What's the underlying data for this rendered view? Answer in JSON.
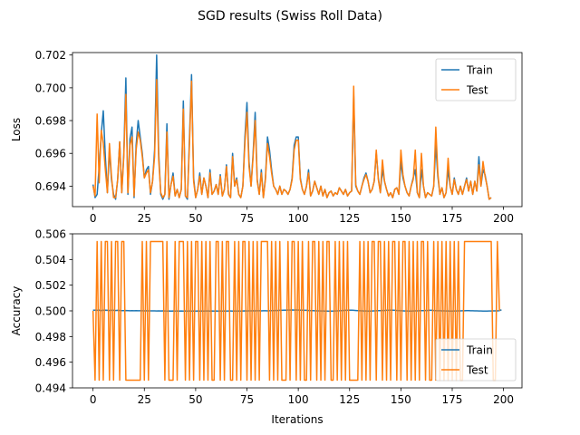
{
  "title": "SGD results (Swiss Roll Data)",
  "colors": {
    "train": "#1f77b4",
    "test": "#ff7f0e"
  },
  "chart_data": [
    {
      "type": "line",
      "ylabel": "Loss",
      "xlabel": "",
      "xlim": [
        -10,
        209
      ],
      "ylim": [
        0.69275,
        0.70215
      ],
      "xticks": [
        0,
        25,
        50,
        75,
        100,
        125,
        150,
        175,
        200
      ],
      "yticks": [
        0.694,
        0.696,
        0.698,
        0.7,
        0.702
      ],
      "ytick_labels": [
        "0.694",
        "0.696",
        "0.698",
        "0.700",
        "0.702"
      ],
      "legend": {
        "position": "top-right",
        "entries": [
          "Train",
          "Test"
        ]
      },
      "series": [
        {
          "name": "Train",
          "x_step": 1,
          "values": [
            0.6941,
            0.6933,
            0.6935,
            0.6952,
            0.6972,
            0.6986,
            0.6958,
            0.6936,
            0.6962,
            0.6944,
            0.6935,
            0.6932,
            0.6944,
            0.6967,
            0.6936,
            0.696,
            0.7006,
            0.6935,
            0.6969,
            0.6976,
            0.6933,
            0.6965,
            0.698,
            0.697,
            0.696,
            0.6945,
            0.695,
            0.6952,
            0.6935,
            0.6943,
            0.6962,
            0.702,
            0.696,
            0.6935,
            0.6932,
            0.6935,
            0.6978,
            0.6932,
            0.6941,
            0.6948,
            0.6934,
            0.6938,
            0.6933,
            0.6938,
            0.6992,
            0.6934,
            0.6932,
            0.697,
            0.7008,
            0.6945,
            0.6933,
            0.6938,
            0.6948,
            0.6935,
            0.6945,
            0.694,
            0.6933,
            0.695,
            0.6935,
            0.6937,
            0.6941,
            0.6935,
            0.6947,
            0.6934,
            0.6938,
            0.6953,
            0.6935,
            0.6933,
            0.696,
            0.694,
            0.6945,
            0.6935,
            0.6933,
            0.694,
            0.697,
            0.6991,
            0.6955,
            0.694,
            0.696,
            0.6985,
            0.6944,
            0.6935,
            0.695,
            0.6933,
            0.6945,
            0.697,
            0.6962,
            0.695,
            0.694,
            0.6938,
            0.6935,
            0.694,
            0.6935,
            0.6938,
            0.6937,
            0.6935,
            0.6938,
            0.6945,
            0.6965,
            0.697,
            0.697,
            0.6945,
            0.6938,
            0.6935,
            0.694,
            0.695,
            0.6934,
            0.6937,
            0.6943,
            0.6939,
            0.6935,
            0.694,
            0.6934,
            0.6938,
            0.6933,
            0.6936,
            0.6937,
            0.6934,
            0.6936,
            0.6935,
            0.6939,
            0.6937,
            0.6935,
            0.6938,
            0.6934,
            0.6936,
            0.6937,
            0.6995,
            0.694,
            0.6937,
            0.6935,
            0.694,
            0.6945,
            0.6948,
            0.6943,
            0.6936,
            0.6938,
            0.6943,
            0.696,
            0.6945,
            0.6936,
            0.695,
            0.6943,
            0.6938,
            0.6934,
            0.6936,
            0.6933,
            0.6938,
            0.6939,
            0.6935,
            0.6955,
            0.6945,
            0.694,
            0.6936,
            0.6934,
            0.694,
            0.6945,
            0.695,
            0.6936,
            0.6933,
            0.695,
            0.694,
            0.6933,
            0.6936,
            0.6935,
            0.6934,
            0.694,
            0.6965,
            0.6946,
            0.6935,
            0.6939,
            0.6933,
            0.6936,
            0.695,
            0.694,
            0.6935,
            0.6945,
            0.6938,
            0.6935,
            0.694,
            0.6935,
            0.694,
            0.6945,
            0.6937,
            0.6943,
            0.6935,
            0.6943,
            0.6937,
            0.6958,
            0.694,
            0.695,
            0.6947,
            0.694,
            0.6932,
            0.6933
          ]
        },
        {
          "name": "Test",
          "x_step": 1,
          "values": [
            0.694,
            0.6934,
            0.6984,
            0.6942,
            0.6974,
            0.6966,
            0.695,
            0.6936,
            0.6966,
            0.6946,
            0.6933,
            0.6933,
            0.6944,
            0.6967,
            0.6936,
            0.6958,
            0.6996,
            0.6936,
            0.6965,
            0.697,
            0.6934,
            0.6962,
            0.6973,
            0.6968,
            0.6958,
            0.6945,
            0.6948,
            0.695,
            0.6936,
            0.6943,
            0.6958,
            0.7005,
            0.6956,
            0.6936,
            0.6933,
            0.6935,
            0.6973,
            0.6933,
            0.6941,
            0.6946,
            0.6934,
            0.6938,
            0.6933,
            0.6938,
            0.6987,
            0.6934,
            0.6933,
            0.6966,
            0.7004,
            0.6943,
            0.6933,
            0.6938,
            0.6946,
            0.6935,
            0.6945,
            0.694,
            0.6933,
            0.6948,
            0.6935,
            0.6937,
            0.6941,
            0.6935,
            0.6946,
            0.6934,
            0.6938,
            0.6952,
            0.6935,
            0.6933,
            0.6958,
            0.694,
            0.6944,
            0.6935,
            0.6933,
            0.694,
            0.6966,
            0.6985,
            0.6952,
            0.694,
            0.6958,
            0.698,
            0.6943,
            0.6935,
            0.6948,
            0.6933,
            0.6944,
            0.6966,
            0.6958,
            0.6948,
            0.694,
            0.6938,
            0.6935,
            0.694,
            0.6935,
            0.6938,
            0.6937,
            0.6935,
            0.6938,
            0.6944,
            0.6962,
            0.6968,
            0.6968,
            0.6944,
            0.6938,
            0.6935,
            0.694,
            0.6948,
            0.6934,
            0.6937,
            0.6943,
            0.6939,
            0.6935,
            0.694,
            0.6934,
            0.6938,
            0.6933,
            0.6936,
            0.6937,
            0.6934,
            0.6936,
            0.6935,
            0.6939,
            0.6937,
            0.6935,
            0.6938,
            0.6934,
            0.6936,
            0.6937,
            0.7001,
            0.6941,
            0.6937,
            0.6935,
            0.694,
            0.6944,
            0.6947,
            0.6943,
            0.6936,
            0.6938,
            0.6943,
            0.6962,
            0.6944,
            0.6936,
            0.6956,
            0.6943,
            0.6938,
            0.6934,
            0.6936,
            0.6933,
            0.6938,
            0.6939,
            0.6935,
            0.6962,
            0.6947,
            0.694,
            0.6936,
            0.6934,
            0.694,
            0.6944,
            0.6962,
            0.6936,
            0.6933,
            0.696,
            0.694,
            0.6933,
            0.6936,
            0.6935,
            0.6934,
            0.694,
            0.6976,
            0.6948,
            0.6935,
            0.6939,
            0.6933,
            0.6936,
            0.6957,
            0.694,
            0.6935,
            0.6944,
            0.6938,
            0.6935,
            0.694,
            0.6935,
            0.694,
            0.6944,
            0.6937,
            0.6943,
            0.6935,
            0.6943,
            0.6937,
            0.6953,
            0.694,
            0.6955,
            0.6946,
            0.694,
            0.6932,
            0.6933
          ]
        }
      ]
    },
    {
      "type": "line",
      "ylabel": "Accuracy",
      "xlabel": "Iterations",
      "xlim": [
        -10,
        209
      ],
      "ylim": [
        0.494,
        0.506
      ],
      "xticks": [
        0,
        25,
        50,
        75,
        100,
        125,
        150,
        175,
        200
      ],
      "yticks": [
        0.494,
        0.496,
        0.498,
        0.5,
        0.502,
        0.504,
        0.506
      ],
      "ytick_labels": [
        "0.494",
        "0.496",
        "0.498",
        "0.500",
        "0.502",
        "0.504",
        "0.506"
      ],
      "legend": {
        "position": "bottom-right",
        "entries": [
          "Train",
          "Test"
        ]
      },
      "series": [
        {
          "name": "Train",
          "x_step": 1,
          "values": [
            0.50005,
            0.50005,
            0.50004,
            0.50005,
            0.50003,
            0.50004,
            0.50005,
            0.50004,
            0.50003,
            0.50004,
            0.50004,
            0.50003,
            0.50004,
            0.50003,
            0.50002,
            0.50002,
            0.50003,
            0.50002,
            0.50001,
            0.50002,
            0.50001,
            0.50002,
            0.50001,
            0.50001,
            0.50001,
            0.5,
            0.50001,
            0.5,
            0.5,
            0.5,
            0.5,
            0.49999,
            0.5,
            0.49999,
            0.5,
            0.49999,
            0.49998,
            0.49999,
            0.49998,
            0.49999,
            0.49998,
            0.49999,
            0.49998,
            0.49999,
            0.49998,
            0.49999,
            0.49998,
            0.49999,
            0.49998,
            0.49999,
            0.49998,
            0.49999,
            0.49998,
            0.49999,
            0.49998,
            0.49999,
            0.49999,
            0.49998,
            0.49999,
            0.49998,
            0.49999,
            0.49998,
            0.49999,
            0.49998,
            0.49999,
            0.49998,
            0.49999,
            0.49999,
            0.49998,
            0.49999,
            0.49998,
            0.49999,
            0.49998,
            0.49999,
            0.5,
            0.49999,
            0.5,
            0.5,
            0.50001,
            0.5,
            0.50001,
            0.50001,
            0.5,
            0.50001,
            0.50001,
            0.5,
            0.50001,
            0.50002,
            0.50002,
            0.50003,
            0.50003,
            0.50004,
            0.50004,
            0.50005,
            0.50005,
            0.50006,
            0.50006,
            0.50007,
            0.50006,
            0.50007,
            0.50006,
            0.50005,
            0.50005,
            0.50004,
            0.50004,
            0.50003,
            0.50002,
            0.50002,
            0.50001,
            0.5,
            0.5,
            0.49999,
            0.49999,
            0.49998,
            0.49998,
            0.49997,
            0.49998,
            0.49998,
            0.49999,
            0.5,
            0.50001,
            0.50002,
            0.50003,
            0.50004,
            0.50004,
            0.50005,
            0.50005,
            0.50004,
            0.50003,
            0.50002,
            0.50001,
            0.5,
            0.49999,
            0.49999,
            0.49998,
            0.49998,
            0.49999,
            0.5,
            0.50001,
            0.50002,
            0.50002,
            0.50003,
            0.50003,
            0.50004,
            0.50004,
            0.50005,
            0.50005,
            0.50004,
            0.50003,
            0.50002,
            0.50001,
            0.5,
            0.49999,
            0.49999,
            0.49998,
            0.49998,
            0.49999,
            0.5,
            0.5,
            0.50001,
            0.50002,
            0.50002,
            0.50003,
            0.50003,
            0.50004,
            0.50004,
            0.50003,
            0.50002,
            0.50001,
            0.50001,
            0.5,
            0.5,
            0.49999,
            0.49999,
            0.49998,
            0.49998,
            0.49999,
            0.49999,
            0.5,
            0.5,
            0.50001,
            0.50001,
            0.50002,
            0.50002,
            0.50001,
            0.50001,
            0.5,
            0.5,
            0.49999,
            0.49999,
            0.49998,
            0.49998,
            0.49998,
            0.49999,
            0.49999,
            0.5,
            0.5,
            0.5,
            0.50002,
            0.50008
          ]
        },
        {
          "name": "Test",
          "x_step": 1,
          "values": [
            0.5,
            0.4946,
            0.5054,
            0.4946,
            0.5054,
            0.4946,
            0.5054,
            0.5054,
            0.4946,
            0.5054,
            0.4946,
            0.5054,
            0.5054,
            0.4946,
            0.5054,
            0.5054,
            0.4946,
            0.4946,
            0.4946,
            0.4946,
            0.4946,
            0.4946,
            0.4946,
            0.4946,
            0.5054,
            0.4946,
            0.5054,
            0.4946,
            0.5054,
            0.5054,
            0.5054,
            0.5054,
            0.5054,
            0.5054,
            0.5054,
            0.4946,
            0.5054,
            0.4946,
            0.4946,
            0.4946,
            0.5054,
            0.4946,
            0.5054,
            0.5054,
            0.5054,
            0.4946,
            0.5054,
            0.4946,
            0.5054,
            0.4946,
            0.5054,
            0.5054,
            0.4946,
            0.5054,
            0.4946,
            0.5054,
            0.4946,
            0.5054,
            0.4946,
            0.4946,
            0.5054,
            0.5054,
            0.4946,
            0.5054,
            0.4946,
            0.5054,
            0.5054,
            0.4946,
            0.4946,
            0.5054,
            0.4946,
            0.5054,
            0.4946,
            0.5054,
            0.5054,
            0.4946,
            0.5054,
            0.4946,
            0.5054,
            0.4946,
            0.5054,
            0.4946,
            0.5054,
            0.5054,
            0.5054,
            0.5054,
            0.4946,
            0.5054,
            0.4946,
            0.5054,
            0.4946,
            0.5054,
            0.4946,
            0.4946,
            0.4946,
            0.5054,
            0.4946,
            0.5054,
            0.5054,
            0.4946,
            0.5054,
            0.4946,
            0.5054,
            0.4946,
            0.4946,
            0.5054,
            0.4946,
            0.5054,
            0.5054,
            0.4946,
            0.5054,
            0.4946,
            0.5054,
            0.4946,
            0.5054,
            0.5054,
            0.4946,
            0.4946,
            0.5054,
            0.4946,
            0.5054,
            0.4946,
            0.5054,
            0.4946,
            0.5054,
            0.4946,
            0.4946,
            0.4946,
            0.4946,
            0.4946,
            0.5054,
            0.4946,
            0.5054,
            0.4946,
            0.5054,
            0.4946,
            0.5054,
            0.5054,
            0.4946,
            0.5054,
            0.5054,
            0.4946,
            0.5054,
            0.4946,
            0.5054,
            0.4946,
            0.5054,
            0.5054,
            0.4946,
            0.5054,
            0.4946,
            0.5054,
            0.5054,
            0.4946,
            0.5054,
            0.4946,
            0.5054,
            0.4946,
            0.5054,
            0.4946,
            0.5054,
            0.5054,
            0.4946,
            0.5054,
            0.4946,
            0.4946,
            0.5054,
            0.4946,
            0.5054,
            0.4946,
            0.5054,
            0.4946,
            0.5054,
            0.4946,
            0.5054,
            0.4946,
            0.5054,
            0.4946,
            0.5054,
            0.4946,
            0.4946,
            0.5054,
            0.5054,
            0.5054,
            0.5054,
            0.5054,
            0.5054,
            0.5054,
            0.5054,
            0.5054,
            0.5054,
            0.5054,
            0.5054,
            0.5054,
            0.5054,
            0.4946,
            0.4946,
            0.5054,
            0.5
          ]
        }
      ]
    }
  ]
}
